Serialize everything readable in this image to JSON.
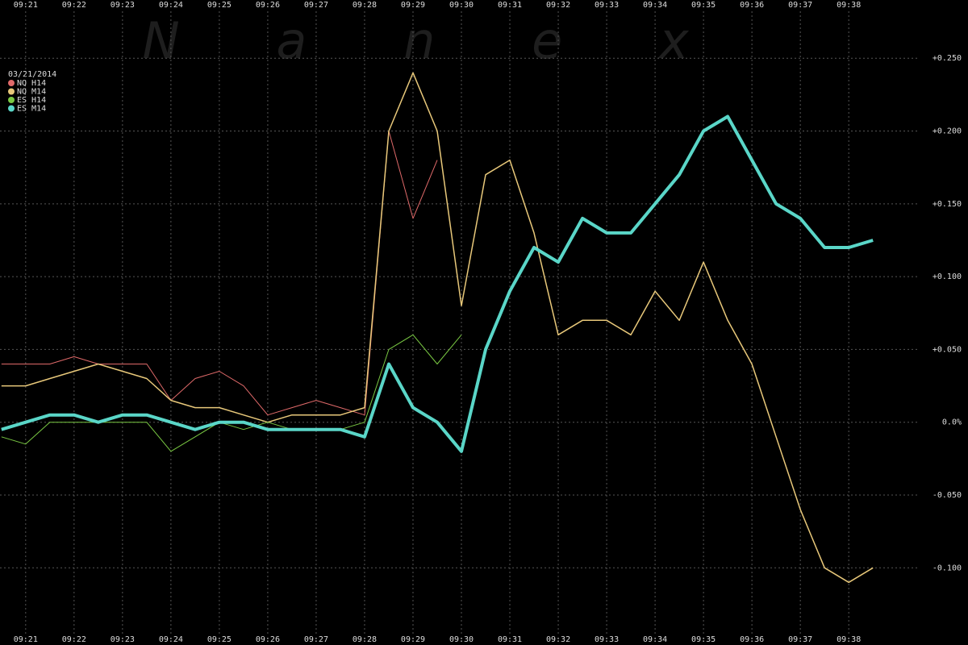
{
  "chart_data": {
    "type": "line",
    "watermark": "N a n e x",
    "legend_title": "03/21/2014",
    "legend_position": "upper left",
    "grid": true,
    "x": [
      560.5,
      561,
      561.5,
      562,
      562.5,
      563,
      563.5,
      564,
      564.5,
      565,
      565.5,
      566,
      566.5,
      567,
      567.5,
      568,
      568.5,
      569,
      569.5,
      570,
      570.5,
      571,
      571.5,
      572,
      572.5,
      573,
      573.5,
      574,
      574.5,
      575,
      575.5,
      576,
      576.5,
      577,
      577.5,
      578,
      578.5
    ],
    "xlim": [
      560.47,
      579.13
    ],
    "xticks": [
      {
        "value": 561,
        "label": "09:21"
      },
      {
        "value": 562,
        "label": "09:22"
      },
      {
        "value": 563,
        "label": "09:23"
      },
      {
        "value": 564,
        "label": "09:24"
      },
      {
        "value": 565,
        "label": "09:25"
      },
      {
        "value": 566,
        "label": "09:26"
      },
      {
        "value": 567,
        "label": "09:27"
      },
      {
        "value": 568,
        "label": "09:28"
      },
      {
        "value": 569,
        "label": "09:29"
      },
      {
        "value": 570,
        "label": "09:30"
      },
      {
        "value": 571,
        "label": "09:31"
      },
      {
        "value": 572,
        "label": "09:32"
      },
      {
        "value": 573,
        "label": "09:33"
      },
      {
        "value": 574,
        "label": "09:34"
      },
      {
        "value": 575,
        "label": "09:35"
      },
      {
        "value": 576,
        "label": "09:36"
      },
      {
        "value": 577,
        "label": "09:37"
      },
      {
        "value": 578,
        "label": "09:38"
      }
    ],
    "ylim": [
      -0.153,
      0.29
    ],
    "yticks": [
      {
        "value": 0.25,
        "label": "+0.250"
      },
      {
        "value": 0.2,
        "label": "+0.200"
      },
      {
        "value": 0.15,
        "label": "+0.150"
      },
      {
        "value": 0.1,
        "label": "+0.100"
      },
      {
        "value": 0.05,
        "label": "+0.050"
      },
      {
        "value": 0,
        "label": "0.0%"
      },
      {
        "value": -0.05,
        "label": "-0.050"
      },
      {
        "value": -0.1,
        "label": "-0.100"
      }
    ],
    "series": [
      {
        "name": "NQ H14",
        "color": "#e06a6a",
        "width": 1,
        "values": [
          0.04,
          0.04,
          0.04,
          0.045,
          0.04,
          0.04,
          0.04,
          0.015,
          0.03,
          0.035,
          0.025,
          0.005,
          0.01,
          0.015,
          0.01,
          0.005,
          0.2,
          0.14,
          0.18,
          null,
          null,
          null,
          null,
          null,
          null,
          null,
          null,
          null,
          null,
          null,
          null,
          null,
          null,
          null,
          null,
          null,
          null
        ]
      },
      {
        "name": "NQ M14",
        "color": "#e8c87a",
        "width": 1.5,
        "values": [
          0.025,
          0.025,
          0.03,
          0.035,
          0.04,
          0.035,
          0.03,
          0.015,
          0.01,
          0.01,
          0.005,
          0,
          0.005,
          0.005,
          0.005,
          0.01,
          0.2,
          0.24,
          0.2,
          0.08,
          0.17,
          0.18,
          0.13,
          0.06,
          0.07,
          0.07,
          0.06,
          0.09,
          0.07,
          0.11,
          0.07,
          0.04,
          -0.01,
          -0.06,
          -0.1,
          -0.11,
          -0.1
        ]
      },
      {
        "name": "ES H14",
        "color": "#7ac943",
        "width": 1,
        "values": [
          -0.01,
          -0.015,
          0,
          0,
          0,
          0,
          0,
          -0.02,
          -0.01,
          0,
          -0.005,
          0,
          -0.005,
          -0.005,
          -0.005,
          0,
          0.05,
          0.06,
          0.04,
          0.06,
          null,
          null,
          null,
          null,
          null,
          null,
          null,
          null,
          null,
          null,
          null,
          null,
          null,
          null,
          null,
          null,
          null
        ]
      },
      {
        "name": "ES M14",
        "color": "#5ad6c8",
        "width": 4,
        "values": [
          -0.005,
          0,
          0.005,
          0.005,
          0,
          0.005,
          0.005,
          0,
          -0.005,
          0,
          0,
          -0.005,
          -0.005,
          -0.005,
          -0.005,
          -0.01,
          0.04,
          0.01,
          0,
          -0.02,
          0.05,
          0.09,
          0.12,
          0.11,
          0.14,
          0.13,
          0.13,
          0.15,
          0.17,
          0.2,
          0.21,
          0.18,
          0.15,
          0.14,
          0.12,
          0.12,
          0.125
        ]
      }
    ]
  }
}
